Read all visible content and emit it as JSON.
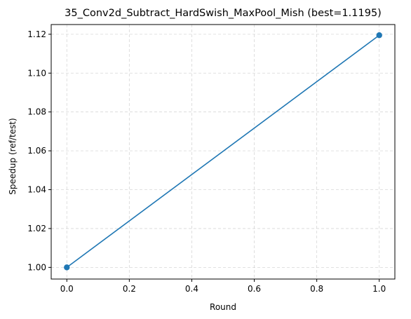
{
  "chart_data": {
    "type": "line",
    "title": "35_Conv2d_Subtract_HardSwish_MaxPool_Mish (best=1.1195)",
    "xlabel": "Round",
    "ylabel": "Speedup (ref/test)",
    "x": [
      0.0,
      1.0
    ],
    "series": [
      {
        "values": [
          1.0,
          1.1195
        ],
        "color": "#1f77b4",
        "marker": "circle"
      }
    ],
    "xlim": [
      -0.05,
      1.05
    ],
    "ylim": [
      0.994,
      1.125
    ],
    "xticks": [
      0.0,
      0.2,
      0.4,
      0.6,
      0.8,
      1.0
    ],
    "xtick_labels": [
      "0.0",
      "0.2",
      "0.4",
      "0.6",
      "0.8",
      "1.0"
    ],
    "yticks": [
      1.0,
      1.02,
      1.04,
      1.06,
      1.08,
      1.1,
      1.12
    ],
    "ytick_labels": [
      "1.00",
      "1.02",
      "1.04",
      "1.06",
      "1.08",
      "1.10",
      "1.12"
    ],
    "grid": true,
    "grid_style": "dashed",
    "legend": false
  }
}
